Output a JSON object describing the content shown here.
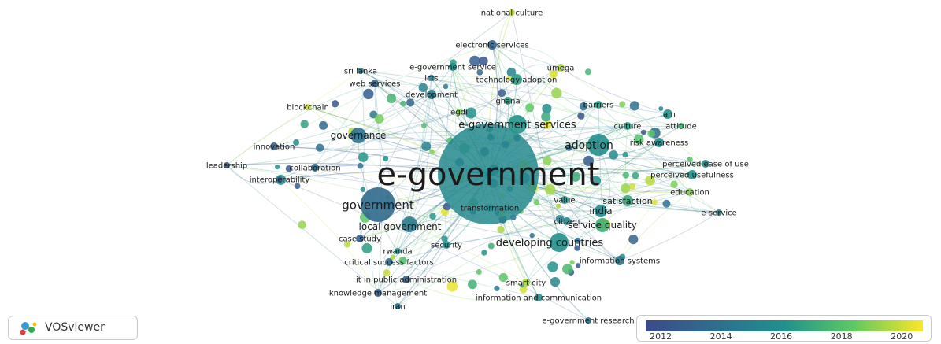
{
  "app": {
    "logo_text": "VOSviewer",
    "logo_icon": "vosviewer-logo-icon"
  },
  "legend": {
    "ticks": [
      "2012",
      "2014",
      "2016",
      "2018",
      "2020"
    ],
    "range": [
      2011.5,
      2020.7
    ],
    "colors": [
      "#3b4a8c",
      "#2e6e8e",
      "#21918c",
      "#5ec962",
      "#fde725"
    ]
  },
  "network": {
    "type": "bibliometric keyword co-occurrence overlay map",
    "nodes": [
      {
        "id": "e_government",
        "label": "e-government",
        "year": 2015.5
      },
      {
        "id": "e_government_services",
        "label": "e-government services",
        "year": 2016.2
      },
      {
        "id": "adoption",
        "label": "adoption",
        "year": 2016.0
      },
      {
        "id": "government",
        "label": "government",
        "year": 2013.5
      },
      {
        "id": "governance",
        "label": "governance",
        "year": 2014.0
      },
      {
        "id": "local_government",
        "label": "local government",
        "year": 2014.5
      },
      {
        "id": "developing_countries",
        "label": "developing countries",
        "year": 2016.0
      },
      {
        "id": "service_quality",
        "label": "service quality",
        "year": 2017.3
      },
      {
        "id": "india",
        "label": "india",
        "year": 2015.5
      },
      {
        "id": "satisfaction",
        "label": "satisfaction",
        "year": 2017.0
      },
      {
        "id": "national_culture",
        "label": "national culture",
        "year": 2019.8
      },
      {
        "id": "electronic_services",
        "label": "electronic services",
        "year": 2013.0
      },
      {
        "id": "umega",
        "label": "umega",
        "year": 2019.5
      },
      {
        "id": "sri_lanka",
        "label": "sri lanka",
        "year": 2015.0
      },
      {
        "id": "e_government_service",
        "label": "e-government service",
        "year": 2015.5
      },
      {
        "id": "icts",
        "label": "icts",
        "year": 2015.0
      },
      {
        "id": "web_services",
        "label": "web services",
        "year": 2013.0
      },
      {
        "id": "technology_adoption",
        "label": "technology adoption",
        "year": 2016.5
      },
      {
        "id": "development",
        "label": "development",
        "year": 2014.5
      },
      {
        "id": "ghana",
        "label": "ghana",
        "year": 2016.5
      },
      {
        "id": "blockchain",
        "label": "blockchain",
        "year": 2020.0
      },
      {
        "id": "egdi",
        "label": "egdi",
        "year": 2019.0
      },
      {
        "id": "barriers",
        "label": "barriers",
        "year": 2016.5
      },
      {
        "id": "tam",
        "label": "tam",
        "year": 2016.0
      },
      {
        "id": "culture",
        "label": "culture",
        "year": 2016.5
      },
      {
        "id": "attitude",
        "label": "attitude",
        "year": 2017.5
      },
      {
        "id": "innovation",
        "label": "innovation",
        "year": 2013.0
      },
      {
        "id": "risk_awareness",
        "label": "risk awareness",
        "year": 2016.0
      },
      {
        "id": "leadership",
        "label": "leadership",
        "year": 2012.5
      },
      {
        "id": "collaboration",
        "label": "collaboration",
        "year": 2013.5
      },
      {
        "id": "perceived_ease_of_use",
        "label": "perceived ease of use",
        "year": 2015.5
      },
      {
        "id": "interoperability",
        "label": "interoperability",
        "year": 2013.0
      },
      {
        "id": "perceived_usefulness",
        "label": "perceived usefulness",
        "year": 2016.0
      },
      {
        "id": "education",
        "label": "education",
        "year": 2019.0
      },
      {
        "id": "transformation",
        "label": "transformation",
        "year": 2015.5
      },
      {
        "id": "value",
        "label": "value",
        "year": 2016.0
      },
      {
        "id": "e_service",
        "label": "e-service",
        "year": 2015.0
      },
      {
        "id": "citizen",
        "label": "citizen",
        "year": 2015.5
      },
      {
        "id": "case_study",
        "label": "case study",
        "year": 2013.0
      },
      {
        "id": "security",
        "label": "security",
        "year": 2016.0
      },
      {
        "id": "rwanda",
        "label": "rwanda",
        "year": 2016.0
      },
      {
        "id": "critical_success_factors",
        "label": "critical success factors",
        "year": 2013.5
      },
      {
        "id": "information_systems",
        "label": "information systems",
        "year": 2014.5
      },
      {
        "id": "it_in_public_administration",
        "label": "it in public administration",
        "year": 2013.0
      },
      {
        "id": "smart_city",
        "label": "smart city",
        "year": 2019.5
      },
      {
        "id": "knowledge_management",
        "label": "knowledge management",
        "year": 2013.0
      },
      {
        "id": "information_and_communication",
        "label": "information and communication",
        "year": 2016.0
      },
      {
        "id": "iran",
        "label": "iran",
        "year": 2014.0
      },
      {
        "id": "e_government_research",
        "label": "e-government research",
        "year": 2014.5
      }
    ]
  }
}
